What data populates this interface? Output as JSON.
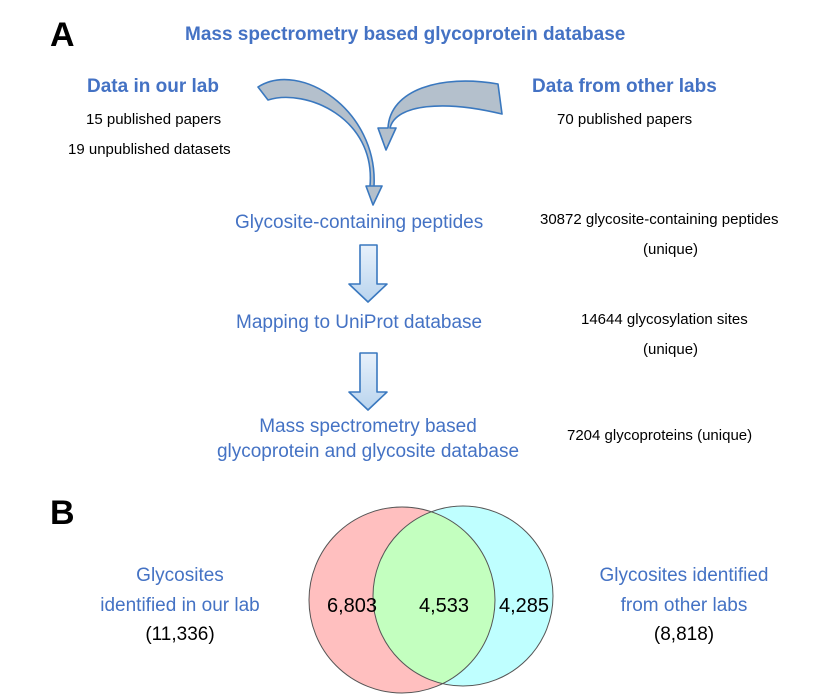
{
  "panel_a": {
    "label": "A",
    "title": "Mass spectrometry based glycoprotein database",
    "our_lab": {
      "heading": "Data in our lab",
      "line1": "15 published papers",
      "line2": "19 unpublished datasets"
    },
    "other_labs": {
      "heading": "Data from other labs",
      "line1": "70 published papers"
    },
    "steps": [
      {
        "label": "Glycosite-containing peptides",
        "stat_line1": "30872 glycosite-containing peptides",
        "stat_line2": "(unique)"
      },
      {
        "label": "Mapping to UniProt database",
        "stat_line1": "14644 glycosylation sites",
        "stat_line2": "(unique)"
      },
      {
        "label_line1": "Mass spectrometry based",
        "label_line2": "glycoprotein and glycosite database",
        "stat_line1": "7204 glycoproteins (unique)"
      }
    ]
  },
  "panel_b": {
    "label": "B",
    "left": {
      "line1": "Glycosites",
      "line2": "identified in our lab",
      "total": "(11,336)"
    },
    "right": {
      "line1": "Glycosites identified",
      "line2": "from other labs",
      "total": "(8,818)"
    },
    "venn": {
      "left_only": "6,803",
      "overlap": "4,533",
      "right_only": "4,285"
    },
    "colors": {
      "left_circle": "#ffbfbf",
      "right_circle": "#bfffff",
      "overlap": "#c3ffbf",
      "title_blue": "#4472c4"
    }
  }
}
